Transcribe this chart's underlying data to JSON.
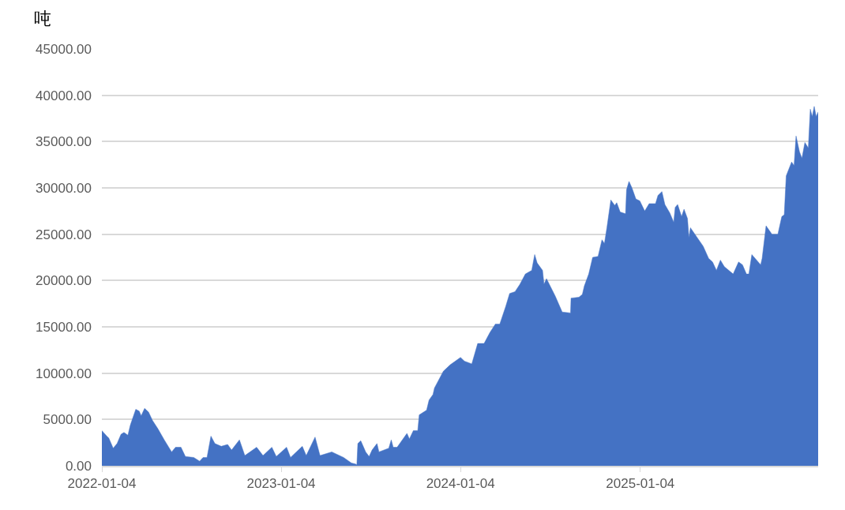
{
  "chart_data": {
    "type": "area",
    "ylabel": "吨",
    "color": "#4472c4",
    "grid": "y",
    "x": [
      "2022-01-04",
      "2022-01-14",
      "2022-01-18",
      "2022-01-27",
      "2022-02-04",
      "2022-02-12",
      "2022-02-18",
      "2022-02-26",
      "2022-03-03",
      "2022-03-14",
      "2022-03-21",
      "2022-03-25",
      "2022-04-01",
      "2022-04-09",
      "2022-04-17",
      "2022-04-28",
      "2022-05-11",
      "2022-05-26",
      "2022-06-03",
      "2022-06-14",
      "2022-06-23",
      "2022-07-10",
      "2022-07-22",
      "2022-07-29",
      "2022-08-06",
      "2022-08-14",
      "2022-08-22",
      "2022-09-04",
      "2022-09-17",
      "2022-09-25",
      "2022-10-11",
      "2022-10-22",
      "2022-11-15",
      "2022-11-28",
      "2022-12-16",
      "2022-12-25",
      "2023-01-15",
      "2023-01-23",
      "2023-02-16",
      "2023-02-24",
      "2023-03-14",
      "2023-03-24",
      "2023-04-17",
      "2023-05-11",
      "2023-05-27",
      "2023-06-04",
      "2023-06-07",
      "2023-06-09",
      "2023-06-15",
      "2023-06-25",
      "2023-07-02",
      "2023-07-08",
      "2023-07-18",
      "2023-07-22",
      "2023-08-11",
      "2023-08-16",
      "2023-08-20",
      "2023-08-28",
      "2023-09-17",
      "2023-09-22",
      "2023-09-30",
      "2023-10-09",
      "2023-10-12",
      "2023-10-27",
      "2023-11-01",
      "2023-11-09",
      "2023-11-12",
      "2023-11-28",
      "2023-11-30",
      "2023-12-14",
      "2024-01-04",
      "2024-01-12",
      "2024-01-27",
      "2024-02-08",
      "2024-02-21",
      "2024-03-04",
      "2024-03-15",
      "2024-03-24",
      "2024-04-05",
      "2024-04-13",
      "2024-04-24",
      "2024-05-04",
      "2024-05-15",
      "2024-05-28",
      "2024-06-03",
      "2024-06-08",
      "2024-06-19",
      "2024-06-22",
      "2024-06-27",
      "2024-07-15",
      "2024-07-29",
      "2024-08-15",
      "2024-08-16",
      "2024-09-01",
      "2024-09-08",
      "2024-09-12",
      "2024-09-21",
      "2024-09-29",
      "2024-10-10",
      "2024-10-18",
      "2024-10-23",
      "2024-10-28",
      "2024-11-05",
      "2024-11-13",
      "2024-11-17",
      "2024-11-24",
      "2024-12-05",
      "2024-12-07",
      "2024-12-12",
      "2024-12-18",
      "2024-12-26",
      "2025-01-03",
      "2025-01-13",
      "2025-01-22",
      "2025-02-04",
      "2025-02-09",
      "2025-02-17",
      "2025-02-23",
      "2025-03-05",
      "2025-03-13",
      "2025-03-16",
      "2025-03-21",
      "2025-03-29",
      "2025-04-03",
      "2025-04-10",
      "2025-04-13",
      "2025-04-16",
      "2025-04-29",
      "2025-05-12",
      "2025-05-23",
      "2025-05-31",
      "2025-06-08",
      "2025-06-16",
      "2025-06-24",
      "2025-07-12",
      "2025-07-23",
      "2025-07-31",
      "2025-08-08",
      "2025-08-13",
      "2025-08-19",
      "2025-09-06",
      "2025-09-09",
      "2025-09-17",
      "2025-09-29",
      "2025-10-11",
      "2025-10-19",
      "2025-10-24",
      "2025-10-28",
      "2025-11-08",
      "2025-11-13",
      "2025-11-17",
      "2025-11-24",
      "2025-11-29",
      "2025-12-05",
      "2025-12-12",
      "2025-12-16",
      "2025-12-20",
      "2025-12-24",
      "2025-12-28",
      "2026-01-01"
    ],
    "values": [
      3800,
      3200,
      3000,
      1900,
      2400,
      3400,
      3600,
      3300,
      4400,
      6100,
      5900,
      5400,
      6200,
      5800,
      4900,
      4000,
      2800,
      1500,
      2000,
      2000,
      1000,
      900,
      500,
      900,
      900,
      3200,
      2400,
      2100,
      2300,
      1700,
      2800,
      1100,
      2000,
      1100,
      2000,
      1000,
      2000,
      900,
      2100,
      1100,
      3100,
      1100,
      1500,
      900,
      300,
      200,
      100,
      2400,
      2700,
      1500,
      1000,
      1700,
      2400,
      1500,
      1900,
      2800,
      2000,
      2000,
      3500,
      2900,
      3800,
      3800,
      5500,
      6000,
      7100,
      7700,
      8400,
      10000,
      10200,
      10900,
      11700,
      11300,
      11000,
      13200,
      13200,
      14400,
      15300,
      15300,
      17200,
      18600,
      18800,
      19600,
      20700,
      21100,
      22800,
      21900,
      21100,
      19600,
      20200,
      18300,
      16600,
      16500,
      18100,
      18200,
      18500,
      19400,
      20700,
      22500,
      22600,
      24400,
      24000,
      25700,
      28700,
      28100,
      28400,
      27400,
      27200,
      29800,
      30700,
      30000,
      28800,
      28600,
      27500,
      28300,
      28300,
      29200,
      29600,
      28200,
      27300,
      26300,
      27900,
      28200,
      26900,
      27700,
      26700,
      24600,
      25700,
      24700,
      23700,
      22400,
      22000,
      21100,
      22200,
      21500,
      20700,
      22000,
      21700,
      20700,
      20700,
      22800,
      21700,
      22400,
      25900,
      25000,
      25000,
      26900,
      27100,
      31300,
      32800,
      32400,
      35600,
      33900,
      33200,
      34900,
      34300,
      38500,
      37700,
      38800,
      37700,
      38200
    ],
    "xlim": [
      "2022-01-04",
      "2026-01-01"
    ],
    "xticks": [
      "2022-01-04",
      "2023-01-04",
      "2024-01-04",
      "2025-01-04"
    ],
    "ylim": [
      0,
      45000
    ],
    "yticks": [
      {
        "value": 0,
        "label": "0.00"
      },
      {
        "value": 5000,
        "label": "5000.00"
      },
      {
        "value": 10000,
        "label": "10000.00"
      },
      {
        "value": 15000,
        "label": "15000.00"
      },
      {
        "value": 20000,
        "label": "20000.00"
      },
      {
        "value": 25000,
        "label": "25000.00"
      },
      {
        "value": 30000,
        "label": "30000.00"
      },
      {
        "value": 35000,
        "label": "35000.00"
      },
      {
        "value": 40000,
        "label": "40000.00"
      },
      {
        "value": 45000,
        "label": "45000.00"
      }
    ]
  }
}
